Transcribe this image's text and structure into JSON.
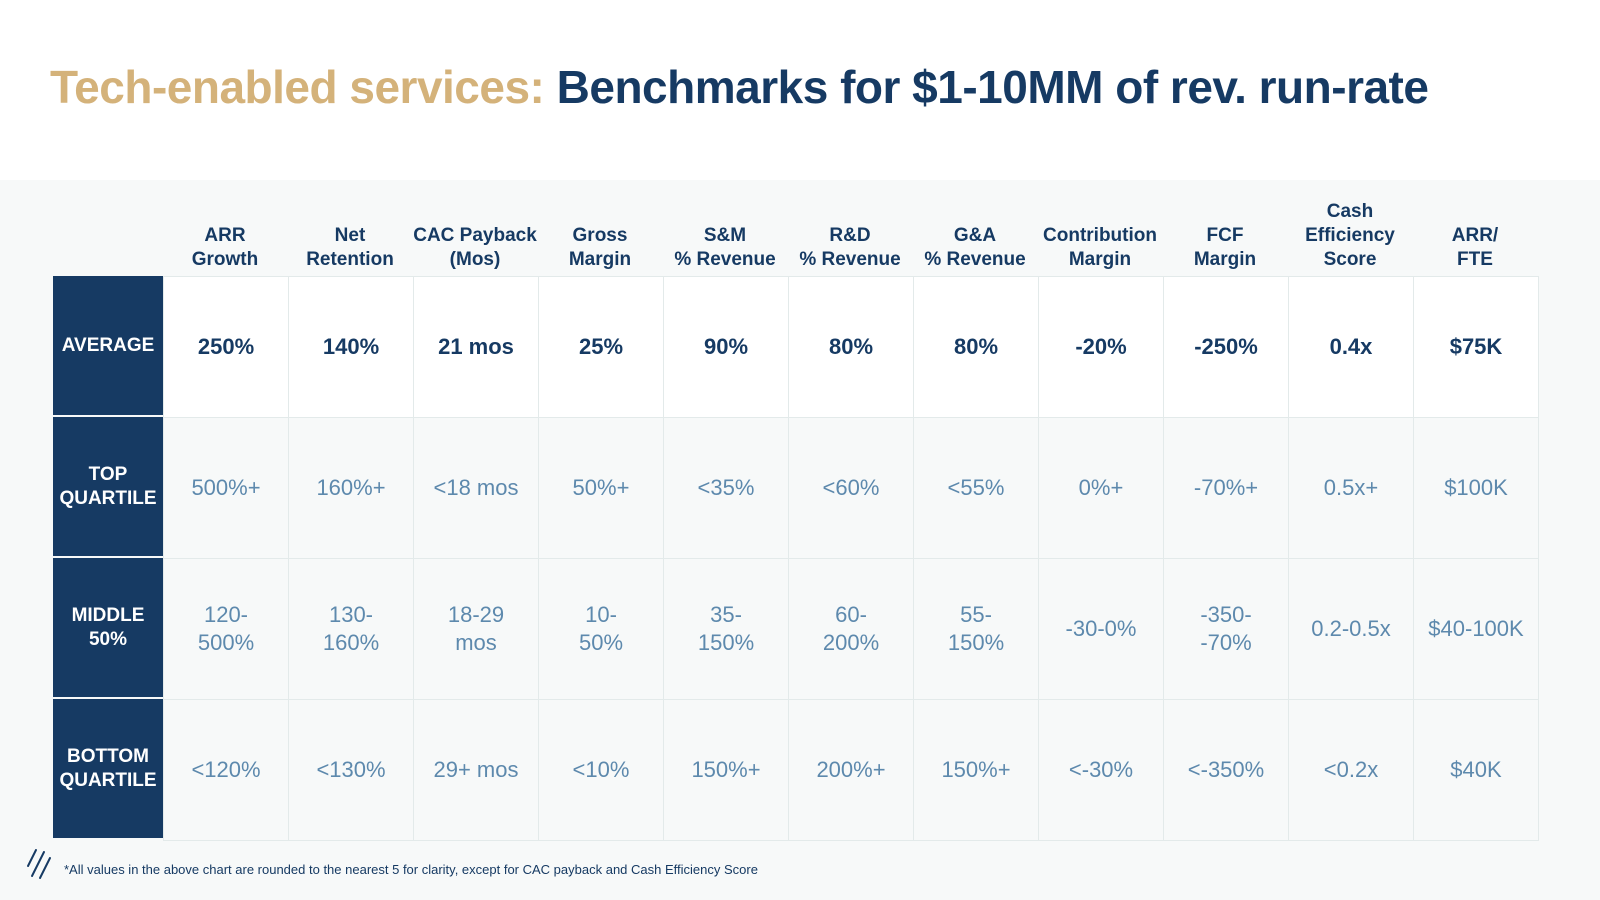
{
  "title": {
    "accent": "Tech-enabled services:",
    "main": "Benchmarks for $1-10MM of rev. run-rate"
  },
  "columns": [
    "ARR\nGrowth",
    "Net\nRetention",
    "CAC Payback\n(Mos)",
    "Gross\nMargin",
    "S&M\n% Revenue",
    "R&D\n% Revenue",
    "G&A\n% Revenue",
    "Contribution\nMargin",
    "FCF\nMargin",
    "Cash\nEfficiency\nScore",
    "ARR/\nFTE"
  ],
  "rows": [
    {
      "label": "AVERAGE",
      "style": "avg",
      "values": [
        "250%",
        "140%",
        "21 mos",
        "25%",
        "90%",
        "80%",
        "80%",
        "-20%",
        "-250%",
        "0.4x",
        "$75K"
      ]
    },
    {
      "label": "TOP\nQUARTILE",
      "style": "q",
      "values": [
        "500%+",
        "160%+",
        "<18 mos",
        "50%+",
        "<35%",
        "<60%",
        "<55%",
        "0%+",
        "-70%+",
        "0.5x+",
        "$100K"
      ]
    },
    {
      "label": "MIDDLE\n50%",
      "style": "q",
      "values": [
        "120-\n500%",
        "130-\n160%",
        "18-29\nmos",
        "10-\n50%",
        "35-\n150%",
        "60-\n200%",
        "55-\n150%",
        "-30-0%",
        "-350-\n-70%",
        "0.2-0.5x",
        "$40-100K"
      ]
    },
    {
      "label": "BOTTOM\nQUARTILE",
      "style": "q",
      "values": [
        "<120%",
        "<130%",
        "29+ mos",
        "<10%",
        "150%+",
        "200%+",
        "150%+",
        "<-30%",
        "<-350%",
        "<0.2x",
        "$40K"
      ]
    }
  ],
  "footnote": "*All values in the above chart are rounded to the nearest 5 for clarity, except for CAC payback and Cash Efficiency Score",
  "colors": {
    "navy": "#163a63",
    "gold": "#d4b27a",
    "muted_blue": "#5d89ad",
    "panel_bg": "#f7f9f9"
  },
  "logo_icon": "brand-slash-logo"
}
